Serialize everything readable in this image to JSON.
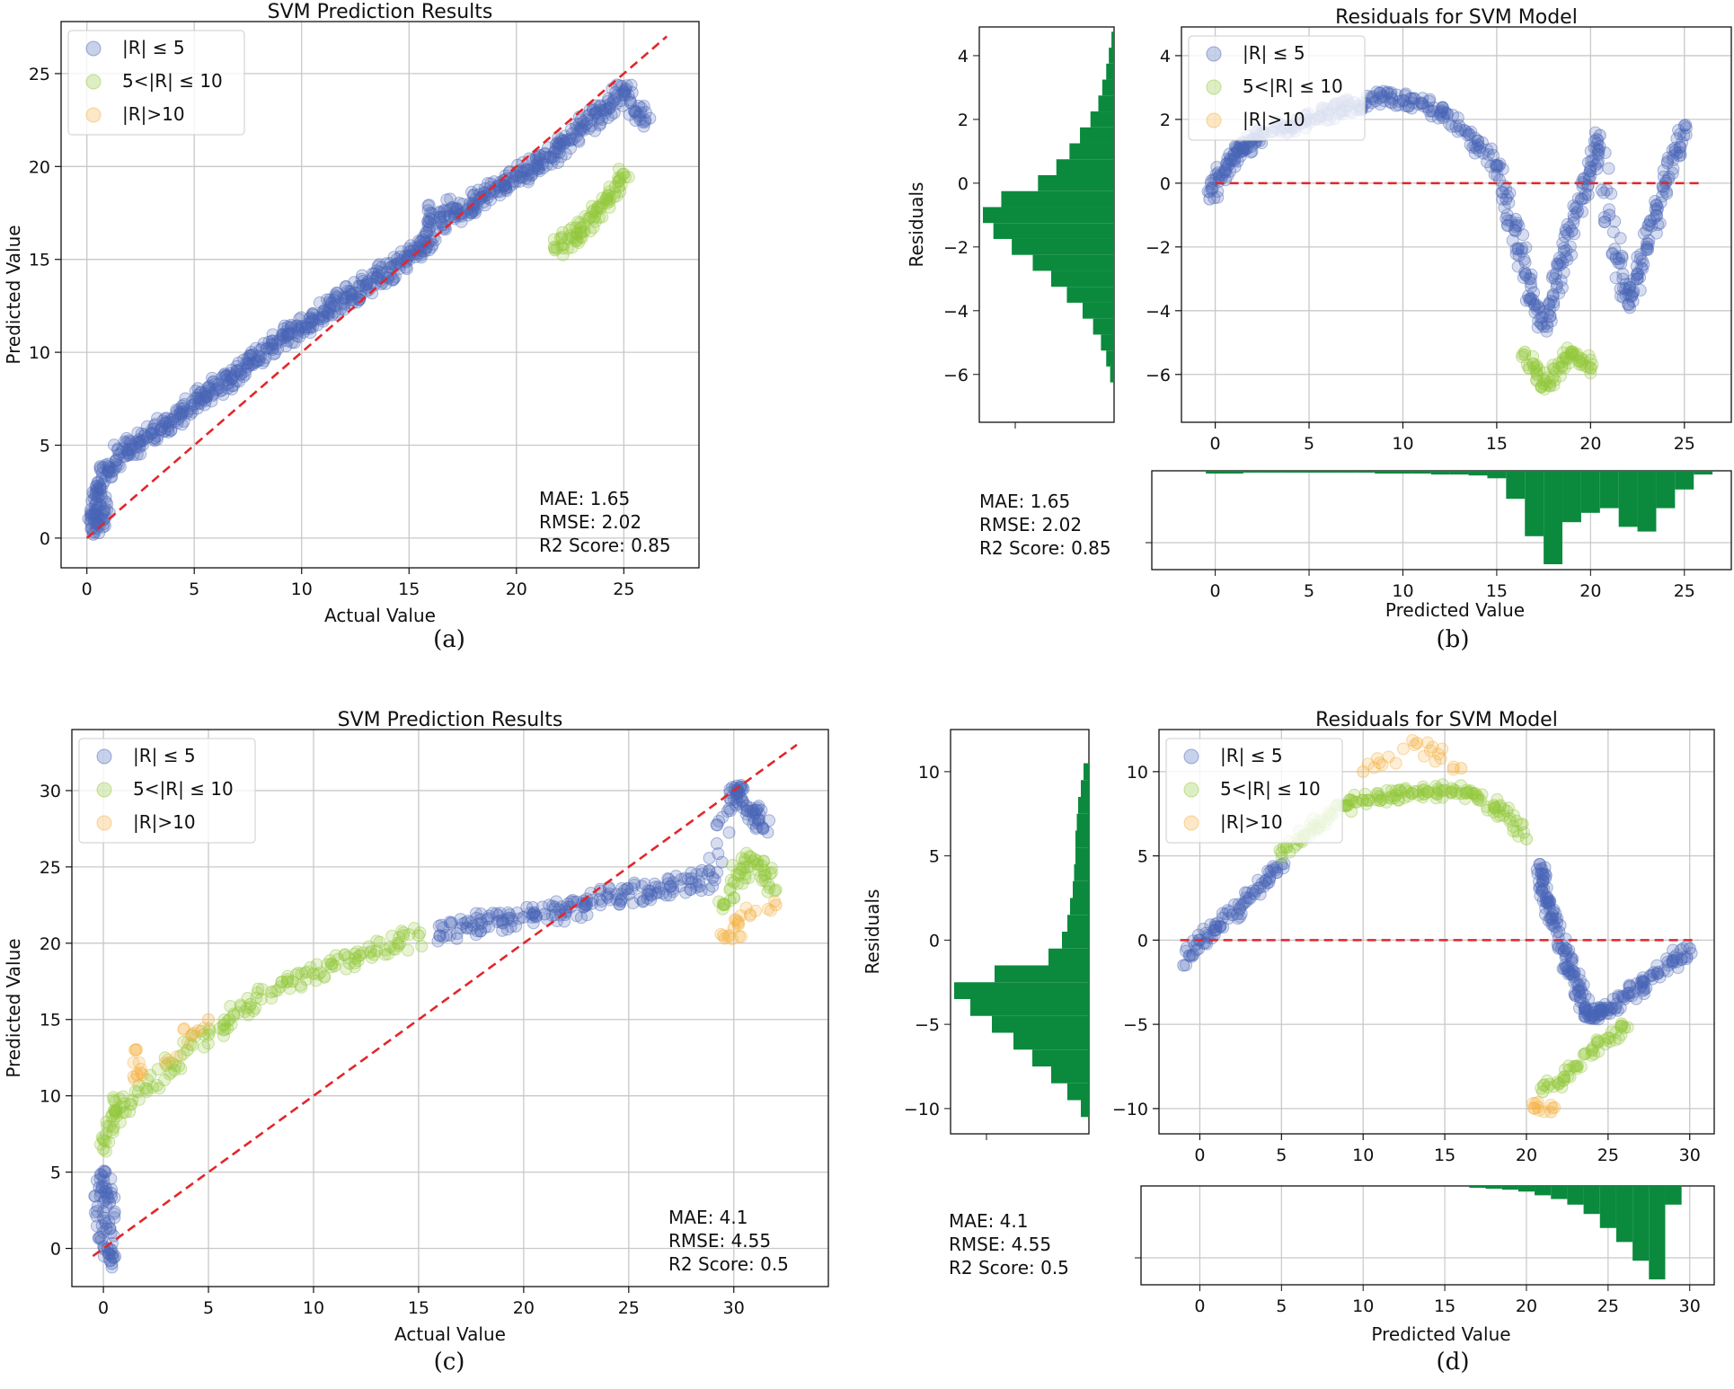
{
  "colors": {
    "low": "#4a66b8",
    "mid": "#93c83a",
    "high": "#f5b041",
    "ref_line": "#e3262b",
    "hist": "#0b8a3e",
    "grid": "#c8c8c8"
  },
  "legend_labels": [
    "|R| ≤ 5",
    "5<|R| ≤ 10",
    "|R|>10"
  ],
  "chart_data": [
    {
      "type": "scatter",
      "panel": "a",
      "caption": "(a)",
      "title": "SVM Prediction Results",
      "xlabel": "Actual Value",
      "ylabel": "Predicted Value",
      "xlim": [
        -1.2,
        28.5
      ],
      "ylim": [
        -1.6,
        27.8
      ],
      "xticks": [
        0,
        5,
        10,
        15,
        20,
        25
      ],
      "yticks": [
        0,
        5,
        10,
        15,
        20,
        25
      ],
      "grid": true,
      "legend_position": "top-left",
      "metrics": [
        "MAE: 1.65",
        "RMSE: 2.02",
        "R2 Score: 0.85"
      ],
      "reference_line": {
        "x": [
          0,
          27
        ],
        "y": [
          0,
          27
        ]
      },
      "series": [
        {
          "name": "|R| ≤ 5",
          "color_key": "low",
          "x": [
            0.2,
            0.4,
            0.6,
            0.8,
            0.3,
            0.7,
            1.0,
            1.5,
            2.0,
            2.5,
            3.0,
            3.5,
            4.0,
            4.5,
            5.0,
            5.5,
            6.0,
            6.5,
            7.0,
            7.5,
            8.0,
            8.5,
            9.0,
            9.5,
            10.0,
            10.5,
            11.0,
            11.5,
            12.0,
            12.5,
            13.0,
            13.5,
            14.0,
            14.5,
            15.0,
            15.5,
            16.0,
            16.0,
            16.5,
            17.0,
            17.5,
            18.0,
            18.5,
            19.0,
            19.5,
            20.0,
            20.5,
            21.0,
            21.5,
            22.0,
            22.5,
            23.0,
            23.5,
            24.0,
            24.5,
            25.0,
            25.5,
            26.0
          ],
          "y": [
            0.5,
            1.5,
            2.8,
            1.0,
            0.2,
            3.2,
            3.6,
            4.5,
            4.8,
            5.2,
            5.6,
            6.0,
            6.4,
            6.8,
            7.2,
            7.6,
            8.0,
            8.5,
            9.0,
            9.4,
            9.8,
            10.2,
            10.7,
            11.0,
            11.4,
            11.8,
            12.2,
            12.5,
            12.9,
            13.2,
            13.6,
            14.0,
            14.3,
            14.8,
            15.2,
            15.6,
            16.0,
            17.5,
            17.0,
            17.8,
            17.5,
            18.0,
            18.4,
            18.8,
            19.0,
            19.5,
            19.8,
            20.2,
            20.5,
            21.0,
            21.5,
            22.0,
            22.5,
            23.0,
            23.5,
            24.0,
            23.0,
            22.5
          ]
        },
        {
          "name": "5<|R| ≤ 10",
          "color_key": "mid",
          "x": [
            21.8,
            22.2,
            22.6,
            23.0,
            23.4,
            23.8,
            24.2,
            24.6,
            25.0
          ],
          "y": [
            15.5,
            15.8,
            16.2,
            16.7,
            17.2,
            17.8,
            18.3,
            18.9,
            19.6
          ]
        },
        {
          "name": "|R|>10",
          "color_key": "high",
          "x": [],
          "y": []
        }
      ]
    },
    {
      "type": "scatter",
      "panel": "b",
      "caption": "(b)",
      "title": "Residuals for SVM Model",
      "xlabel": "Predicted Value",
      "ylabel": "Residuals",
      "xlim": [
        -1.8,
        27.5
      ],
      "ylim": [
        -7.5,
        4.9
      ],
      "xticks": [
        0,
        5,
        10,
        15,
        20,
        25
      ],
      "yticks": [
        -6,
        -4,
        -2,
        0,
        2,
        4
      ],
      "grid": true,
      "legend_position": "top-left",
      "metrics": [
        "MAE: 1.65",
        "RMSE: 2.02",
        "R2 Score: 0.85"
      ],
      "reference_line": {
        "x": [
          0,
          26
        ],
        "y": [
          0,
          0
        ]
      },
      "series": [
        {
          "name": "|R| ≤ 5",
          "color_key": "low",
          "x": [
            -0.3,
            0.2,
            0.6,
            1.0,
            1.5,
            2.0,
            3.0,
            4.0,
            5.0,
            6.0,
            7.0,
            8.0,
            9.0,
            10.0,
            11.0,
            12.0,
            13.0,
            14.0,
            15.0,
            15.5,
            16.0,
            16.5,
            17.0,
            17.5,
            18.0,
            18.5,
            19.0,
            19.5,
            20.0,
            20.5,
            21.0,
            21.5,
            22.0,
            22.5,
            23.0,
            23.5,
            24.0,
            24.5,
            25.0
          ],
          "y": [
            -0.5,
            0.2,
            0.6,
            0.9,
            1.1,
            1.4,
            1.6,
            1.8,
            2.0,
            2.2,
            2.4,
            2.5,
            2.7,
            2.6,
            2.5,
            2.2,
            1.8,
            1.2,
            0.5,
            -0.5,
            -1.5,
            -2.8,
            -3.8,
            -4.5,
            -3.5,
            -2.5,
            -1.5,
            -0.5,
            0.5,
            1.5,
            -1.0,
            -2.5,
            -3.8,
            -3.0,
            -2.0,
            -1.0,
            0.0,
            1.0,
            1.8
          ]
        },
        {
          "name": "5<|R| ≤ 10",
          "color_key": "mid",
          "x": [
            16.5,
            17.0,
            17.5,
            18.0,
            18.5,
            19.0,
            19.5,
            20.0
          ],
          "y": [
            -5.3,
            -5.8,
            -6.3,
            -6.1,
            -5.6,
            -5.3,
            -5.5,
            -5.8
          ]
        },
        {
          "name": "|R|>10",
          "color_key": "high",
          "x": [],
          "y": []
        }
      ],
      "residual_histogram": {
        "bin_centers": [
          4.5,
          4,
          3.5,
          3,
          2.5,
          2,
          1.5,
          1,
          0.5,
          0,
          -0.5,
          -1,
          -1.5,
          -2,
          -2.5,
          -3,
          -3.5,
          -4,
          -4.5,
          -5,
          -5.5,
          -6
        ],
        "counts": [
          2,
          4,
          6,
          9,
          12,
          18,
          26,
          34,
          44,
          58,
          86,
          100,
          92,
          78,
          62,
          48,
          36,
          24,
          16,
          10,
          6,
          3
        ]
      },
      "prediction_histogram": {
        "bin_centers": [
          0,
          1,
          2,
          3,
          4,
          5,
          6,
          7,
          8,
          9,
          10,
          11,
          12,
          13,
          14,
          15,
          16,
          17,
          18,
          19,
          20,
          21,
          22,
          23,
          24,
          25,
          26
        ],
        "counts": [
          3,
          3,
          2,
          2,
          2,
          2,
          2,
          2,
          2,
          3,
          3,
          3,
          4,
          4,
          5,
          8,
          30,
          70,
          100,
          55,
          45,
          40,
          60,
          65,
          40,
          20,
          4
        ]
      }
    },
    {
      "type": "scatter",
      "panel": "c",
      "caption": "(c)",
      "title": "SVM Prediction Results",
      "xlabel": "Actual Value",
      "ylabel": "Predicted Value",
      "xlim": [
        -1.5,
        34.5
      ],
      "ylim": [
        -2.5,
        34.0
      ],
      "xticks": [
        0,
        5,
        10,
        15,
        20,
        25,
        30
      ],
      "yticks": [
        0,
        5,
        10,
        15,
        20,
        25,
        30
      ],
      "grid": true,
      "legend_position": "top-left",
      "metrics": [
        "MAE: 4.1",
        "RMSE: 4.55",
        "R2 Score: 0.5"
      ],
      "reference_line": {
        "x": [
          -0.5,
          33
        ],
        "y": [
          -0.5,
          33
        ]
      },
      "series": [
        {
          "name": "|R| ≤ 5",
          "color_key": "low",
          "x": [
            -0.2,
            0.0,
            0.2,
            0.4,
            0.1,
            0.3,
            16.0,
            17.0,
            18.0,
            19.0,
            20.0,
            21.0,
            22.0,
            23.0,
            24.0,
            25.0,
            26.0,
            27.0,
            28.0,
            29.0,
            29.8,
            30.2,
            30.6,
            31.0,
            31.4
          ],
          "y": [
            4.0,
            2.0,
            0.0,
            -1.0,
            5.0,
            3.0,
            20.5,
            21.0,
            21.3,
            21.5,
            21.7,
            21.9,
            22.1,
            22.5,
            23.0,
            23.2,
            23.4,
            23.7,
            24.0,
            24.3,
            29.5,
            30.0,
            29.0,
            28.5,
            27.5
          ]
        },
        {
          "name": "5<|R| ≤ 10",
          "color_key": "mid",
          "x": [
            0.0,
            0.3,
            0.6,
            1.0,
            2.0,
            3.0,
            4.0,
            5.0,
            6.0,
            7.0,
            8.0,
            9.0,
            10.0,
            11.0,
            12.0,
            13.0,
            14.0,
            15.0,
            29.5,
            30.0,
            30.5,
            31.0,
            31.5,
            32.0
          ],
          "y": [
            6.5,
            8.0,
            9.0,
            9.5,
            10.5,
            12.0,
            13.0,
            14.0,
            15.0,
            16.0,
            16.8,
            17.5,
            18.0,
            18.5,
            19.0,
            19.5,
            20.0,
            20.5,
            22.5,
            24.0,
            25.0,
            25.5,
            24.5,
            23.5
          ]
        },
        {
          "name": "|R|>10",
          "color_key": "high",
          "x": [
            1.5,
            1.8,
            5.0,
            29.5,
            30.0,
            32.0
          ],
          "y": [
            13.0,
            11.5,
            15.0,
            20.5,
            21.0,
            22.5
          ]
        }
      ]
    },
    {
      "type": "scatter",
      "panel": "d",
      "caption": "(d)",
      "title": "Residuals for SVM Model",
      "xlabel": "Predicted Value",
      "ylabel": "Residuals",
      "xlim": [
        -2.5,
        31.5
      ],
      "ylim": [
        -11.5,
        12.5
      ],
      "xticks": [
        0,
        5,
        10,
        15,
        20,
        25,
        30
      ],
      "yticks": [
        -10,
        -5,
        0,
        5,
        10
      ],
      "grid": true,
      "legend_position": "top-left",
      "metrics": [
        "MAE: 4.1",
        "RMSE: 4.55",
        "R2 Score: 0.5"
      ],
      "reference_line": {
        "x": [
          -1.2,
          30.5
        ],
        "y": [
          0,
          0
        ]
      },
      "series": [
        {
          "name": "|R| ≤ 5",
          "color_key": "low",
          "x": [
            -1.0,
            0.0,
            1.0,
            2.0,
            3.0,
            4.0,
            5.0,
            20.8,
            21.0,
            21.3,
            21.6,
            22.0,
            22.4,
            22.8,
            23.2,
            23.6,
            24.0,
            24.5,
            25.0,
            26.0,
            27.0,
            28.0,
            29.0,
            30.0
          ],
          "y": [
            -1.5,
            0.0,
            0.8,
            1.5,
            2.5,
            3.5,
            4.5,
            4.5,
            3.5,
            2.5,
            1.5,
            0.5,
            -1.0,
            -2.0,
            -3.0,
            -4.0,
            -4.5,
            -4.2,
            -4.0,
            -3.5,
            -2.8,
            -2.0,
            -1.2,
            -0.5
          ]
        },
        {
          "name": "5<|R| ≤ 10",
          "color_key": "mid",
          "x": [
            5.0,
            6.0,
            7.0,
            8.0,
            9.0,
            10.0,
            11.0,
            12.0,
            13.0,
            14.0,
            15.0,
            16.0,
            17.0,
            18.0,
            19.0,
            20.0,
            21.0,
            22.0,
            23.0,
            24.0,
            25.0,
            26.0
          ],
          "y": [
            5.2,
            6.0,
            6.8,
            7.5,
            8.0,
            8.3,
            8.5,
            8.6,
            8.7,
            8.8,
            8.9,
            8.7,
            8.4,
            8.0,
            7.2,
            6.0,
            -9.0,
            -8.5,
            -7.5,
            -6.5,
            -5.8,
            -5.2
          ]
        },
        {
          "name": "|R|>10",
          "color_key": "high",
          "x": [
            10.0,
            13.3,
            16.0,
            20.5,
            21.5
          ],
          "y": [
            10.0,
            11.7,
            10.2,
            -10.0,
            -10.2
          ]
        }
      ],
      "residual_histogram": {
        "bin_centers": [
          10,
          9,
          8,
          7,
          6,
          5,
          4,
          3,
          2,
          1,
          0,
          -1,
          -2,
          -3,
          -4,
          -5,
          -6,
          -7,
          -8,
          -9,
          -10
        ],
        "counts": [
          4,
          6,
          8,
          9,
          10,
          10,
          11,
          12,
          14,
          16,
          20,
          30,
          70,
          100,
          88,
          72,
          56,
          42,
          28,
          16,
          6
        ]
      },
      "prediction_histogram": {
        "bin_centers": [
          17,
          18,
          19,
          20,
          21,
          22,
          23,
          24,
          25,
          26,
          27,
          28,
          29
        ],
        "counts": [
          2,
          3,
          4,
          6,
          10,
          14,
          20,
          30,
          45,
          60,
          80,
          100,
          20
        ]
      }
    }
  ]
}
